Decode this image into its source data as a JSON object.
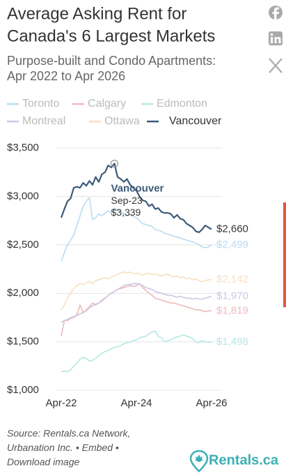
{
  "chart_data": {
    "type": "line",
    "title_lines": [
      "Average Asking Rent for",
      "Canada's 6 Largest Markets"
    ],
    "subtitle_lines": [
      "Purpose-built and Condo Apartments:",
      "Apr 2022 to Apr 2026"
    ],
    "categories": [
      "Apr-22",
      null,
      null,
      null,
      null,
      null,
      null,
      null,
      null,
      null,
      null,
      null,
      null,
      null,
      null,
      null,
      null,
      null,
      null,
      null,
      null,
      null,
      null,
      null,
      "Apr-24",
      null,
      null,
      null,
      null,
      null,
      null,
      null,
      null,
      null,
      null,
      null,
      null,
      null,
      null,
      null,
      null,
      null,
      null,
      null,
      null,
      null,
      null,
      null,
      "Apr-26"
    ],
    "ylim": [
      1000,
      3500
    ],
    "yticks": [
      {
        "value": 1000,
        "label": "$1,000"
      },
      {
        "value": 1500,
        "label": "$1,500"
      },
      {
        "value": 2000,
        "label": "$2,000"
      },
      {
        "value": 2500,
        "label": "$2,500"
      },
      {
        "value": 3000,
        "label": "$3,000"
      },
      {
        "value": 3500,
        "label": "$3,500"
      }
    ],
    "grid": true,
    "highlight": "Vancouver",
    "series": [
      {
        "name": "Toronto",
        "color": "#b9dcef",
        "values": [
          2330,
          2420,
          2500,
          2550,
          2600,
          2700,
          2800,
          2900,
          2950,
          2990,
          2760,
          2780,
          2820,
          2800,
          2830,
          2850,
          2830,
          2880,
          2860,
          2850,
          2820,
          2800,
          2810,
          2790,
          2780,
          2750,
          2720,
          2710,
          2700,
          2690,
          2660,
          2650,
          2640,
          2620,
          2610,
          2600,
          2590,
          2580,
          2570,
          2560,
          2550,
          2540,
          2530,
          2520,
          2500,
          2480,
          2470,
          2480,
          2499
        ],
        "value_labels": [
          null,
          null,
          null,
          null,
          null,
          null,
          null,
          null,
          null,
          null,
          null,
          null,
          null,
          null,
          null,
          null,
          null,
          null,
          null,
          null,
          null,
          null,
          null,
          null,
          null,
          null,
          null,
          null,
          null,
          null,
          null,
          null,
          null,
          null,
          null,
          null,
          null,
          null,
          null,
          null,
          null,
          null,
          null,
          null,
          null,
          null,
          null,
          null,
          "$2,499"
        ]
      },
      {
        "name": "Calgary",
        "color": "#efb9bd",
        "values": [
          1560,
          1720,
          1720,
          1740,
          1750,
          1780,
          1880,
          1800,
          1830,
          1860,
          1900,
          1880,
          1900,
          1920,
          1950,
          1980,
          2000,
          2020,
          2040,
          2050,
          2060,
          2070,
          2080,
          2070,
          2080,
          2100,
          2060,
          2030,
          2000,
          1980,
          1950,
          1940,
          1930,
          1920,
          1910,
          1900,
          1900,
          1890,
          1880,
          1870,
          1860,
          1850,
          1840,
          1830,
          1830,
          1820,
          1810,
          1820,
          1819
        ],
        "value_labels": [
          null,
          null,
          null,
          null,
          null,
          null,
          null,
          null,
          null,
          null,
          null,
          null,
          null,
          null,
          null,
          null,
          null,
          null,
          null,
          null,
          null,
          null,
          null,
          null,
          null,
          null,
          null,
          null,
          null,
          null,
          null,
          null,
          null,
          null,
          null,
          null,
          null,
          null,
          null,
          null,
          null,
          null,
          null,
          null,
          null,
          null,
          null,
          null,
          "$1,819"
        ]
      },
      {
        "name": "Edmonton",
        "color": "#b5e8e3",
        "values": [
          1190,
          1200,
          1190,
          1210,
          1250,
          1280,
          1320,
          1340,
          1330,
          1300,
          1310,
          1330,
          1360,
          1380,
          1400,
          1410,
          1430,
          1440,
          1450,
          1460,
          1480,
          1490,
          1500,
          1510,
          1520,
          1540,
          1550,
          1560,
          1580,
          1600,
          1610,
          1560,
          1540,
          1500,
          1510,
          1520,
          1540,
          1550,
          1560,
          1570,
          1560,
          1550,
          1530,
          1500,
          1490,
          1510,
          1500,
          1495,
          1498
        ],
        "value_labels": [
          null,
          null,
          null,
          null,
          null,
          null,
          null,
          null,
          null,
          null,
          null,
          null,
          null,
          null,
          null,
          null,
          null,
          null,
          null,
          null,
          null,
          null,
          null,
          null,
          null,
          null,
          null,
          null,
          null,
          null,
          null,
          null,
          null,
          null,
          null,
          null,
          null,
          null,
          null,
          null,
          null,
          null,
          null,
          null,
          null,
          null,
          null,
          null,
          "$1,498"
        ]
      },
      {
        "name": "Montreal",
        "color": "#cdc6e4",
        "values": [
          1700,
          1720,
          1730,
          1750,
          1760,
          1770,
          1790,
          1800,
          1820,
          1850,
          1870,
          1890,
          1900,
          1930,
          1950,
          1980,
          2000,
          2020,
          2040,
          2060,
          2080,
          2090,
          2090,
          2100,
          2100,
          2090,
          2080,
          2060,
          2050,
          2040,
          2020,
          2010,
          2000,
          1990,
          1980,
          1980,
          1970,
          1960,
          1970,
          1960,
          1950,
          1950,
          1940,
          1950,
          1940,
          1940,
          1950,
          1960,
          1970
        ],
        "value_labels": [
          null,
          null,
          null,
          null,
          null,
          null,
          null,
          null,
          null,
          null,
          null,
          null,
          null,
          null,
          null,
          null,
          null,
          null,
          null,
          null,
          null,
          null,
          null,
          null,
          null,
          null,
          null,
          null,
          null,
          null,
          null,
          null,
          null,
          null,
          null,
          null,
          null,
          null,
          null,
          null,
          null,
          null,
          null,
          null,
          null,
          null,
          null,
          null,
          "$1,970"
        ]
      },
      {
        "name": "Ottawa",
        "color": "#f7dfc0",
        "values": [
          1830,
          1880,
          1950,
          2000,
          2050,
          2080,
          2100,
          2090,
          2110,
          2120,
          2100,
          2130,
          2140,
          2150,
          2160,
          2150,
          2170,
          2180,
          2200,
          2210,
          2220,
          2210,
          2220,
          2200,
          2210,
          2200,
          2190,
          2200,
          2210,
          2190,
          2200,
          2190,
          2180,
          2190,
          2200,
          2180,
          2170,
          2180,
          2160,
          2170,
          2150,
          2160,
          2140,
          2150,
          2130,
          2120,
          2130,
          2140,
          2142
        ],
        "value_labels": [
          null,
          null,
          null,
          null,
          null,
          null,
          null,
          null,
          null,
          null,
          null,
          null,
          null,
          null,
          null,
          null,
          null,
          null,
          null,
          null,
          null,
          null,
          null,
          null,
          null,
          null,
          null,
          null,
          null,
          null,
          null,
          null,
          null,
          null,
          null,
          null,
          null,
          null,
          null,
          null,
          null,
          null,
          null,
          null,
          null,
          null,
          null,
          null,
          "$2,142"
        ]
      },
      {
        "name": "Vancouver",
        "color": "#3d5a78",
        "values": [
          2780,
          2870,
          2950,
          2980,
          3090,
          3100,
          3090,
          3140,
          3110,
          3160,
          3120,
          3200,
          3150,
          3230,
          3250,
          3320,
          3300,
          3339,
          3200,
          3180,
          3150,
          3180,
          3120,
          3090,
          3060,
          3000,
          2960,
          2950,
          2900,
          2920,
          2870,
          2880,
          2840,
          2830,
          2830,
          2820,
          2780,
          2810,
          2770,
          2760,
          2720,
          2700,
          2680,
          2640,
          2630,
          2660,
          2700,
          2680,
          2660
        ],
        "value_labels": [
          null,
          null,
          null,
          null,
          null,
          null,
          null,
          null,
          null,
          null,
          null,
          null,
          null,
          null,
          null,
          null,
          null,
          null,
          null,
          null,
          null,
          null,
          null,
          null,
          null,
          null,
          null,
          null,
          null,
          null,
          null,
          null,
          null,
          null,
          null,
          null,
          null,
          null,
          null,
          null,
          null,
          null,
          null,
          null,
          null,
          null,
          null,
          null,
          "$2,660"
        ]
      }
    ],
    "tooltip": {
      "title": "Vancouver",
      "date": "Sep-23",
      "value_label": "$3,339"
    },
    "source_lines": [
      "Source: Rentals.ca Network,",
      "Urbanation Inc. • Embed •",
      "Download image"
    ],
    "logo": "Rentals.ca"
  }
}
